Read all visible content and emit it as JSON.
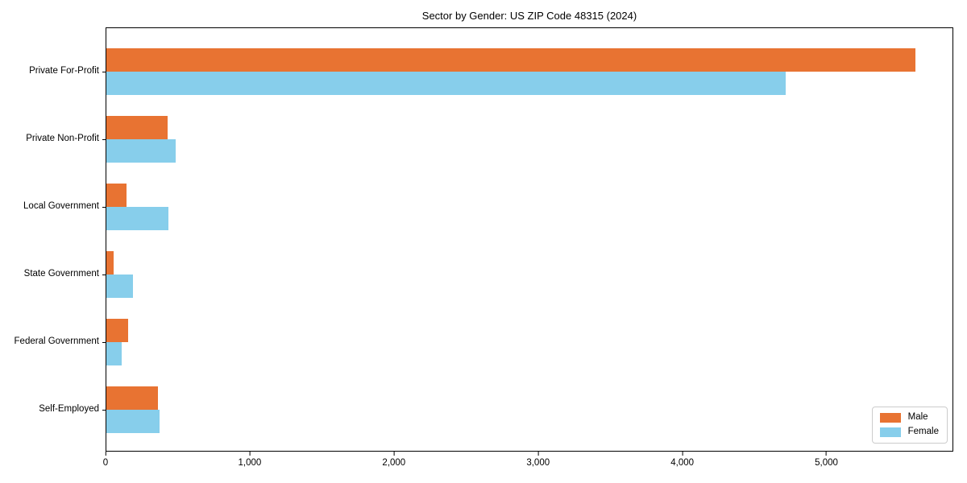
{
  "title": "Sector by Gender: US ZIP Code 48315 (2024)",
  "chart_data": {
    "type": "bar",
    "orientation": "horizontal",
    "title": "Sector by Gender: US ZIP Code 48315 (2024)",
    "xlabel": "",
    "ylabel": "",
    "categories": [
      "Private For-Profit",
      "Private Non-Profit",
      "Local Government",
      "State Government",
      "Federal Government",
      "Self-Employed"
    ],
    "series": [
      {
        "name": "Male",
        "color": "#E87332",
        "values": [
          5610,
          425,
          140,
          50,
          150,
          355
        ]
      },
      {
        "name": "Female",
        "color": "#87CEEB",
        "values": [
          4710,
          480,
          430,
          185,
          105,
          370
        ]
      }
    ],
    "xlim": [
      0,
      5880
    ],
    "x_ticks": [
      {
        "value": 0,
        "label": "0"
      },
      {
        "value": 1000,
        "label": "1,000"
      },
      {
        "value": 2000,
        "label": "2,000"
      },
      {
        "value": 3000,
        "label": "3,000"
      },
      {
        "value": 4000,
        "label": "4,000"
      },
      {
        "value": 5000,
        "label": "5,000"
      }
    ],
    "grid": false,
    "legend_position": "lower right",
    "legend_labels": [
      "Male",
      "Female"
    ]
  },
  "colors": {
    "male": "#E87332",
    "female": "#87CEEB",
    "axis": "#000000",
    "legend_border": "#cccccc",
    "background": "#ffffff"
  }
}
